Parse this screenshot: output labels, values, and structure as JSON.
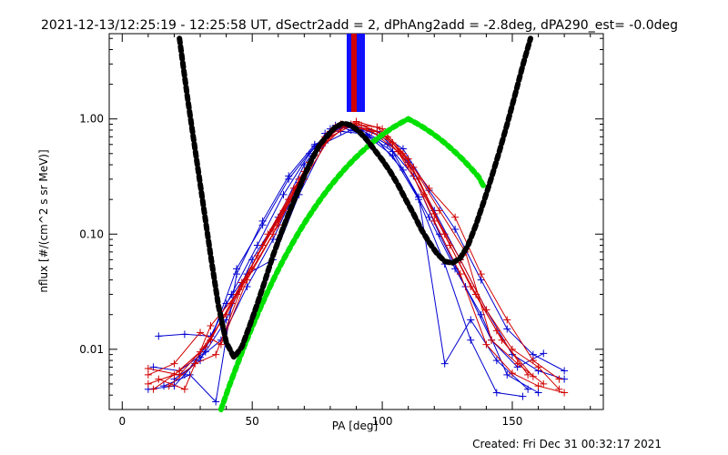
{
  "chart_data": {
    "type": "line",
    "title": "2021-12-13/12:25:19 - 12:25:58 UT, dSectr2add = 2, dPhAng2add = -2.8deg, dPA290_est= -0.0deg",
    "xlabel": "PA [deg]",
    "ylabel": "nflux [#/(cm^2 s sr MeV)]",
    "xlim": [
      -5,
      185
    ],
    "ylim": [
      0.003,
      5.5
    ],
    "yscale": "log",
    "xticks": [
      0,
      50,
      100,
      150
    ],
    "xtick_labels": [
      "0",
      "50",
      "100",
      "150"
    ],
    "yticks": [
      0.01,
      0.1,
      1.0
    ],
    "ytick_labels": [
      "0.01",
      "0.10",
      "1.00"
    ],
    "grid": false,
    "footer": "Created: Fri Dec 31 00:32:17 2021",
    "colors": {
      "red": "#d00000",
      "blue": "#0000d0",
      "green": "#00e000",
      "black": "#000000"
    },
    "series": [
      {
        "color": "blue",
        "x": [
          10,
          20,
          30,
          38,
          48,
          58,
          68,
          78,
          88,
          98,
          108,
          118,
          128,
          138,
          148,
          158,
          170
        ],
        "y": [
          0.0045,
          0.0048,
          0.0085,
          0.012,
          0.035,
          0.09,
          0.28,
          0.75,
          0.88,
          0.78,
          0.55,
          0.24,
          0.11,
          0.04,
          0.015,
          0.009,
          0.0065
        ]
      },
      {
        "color": "blue",
        "x": [
          12,
          22,
          32,
          40,
          50,
          60,
          70,
          80,
          90,
          100,
          110,
          120,
          130,
          140,
          150,
          160,
          170
        ],
        "y": [
          0.007,
          0.0065,
          0.0095,
          0.018,
          0.06,
          0.14,
          0.4,
          0.82,
          0.85,
          0.7,
          0.42,
          0.16,
          0.06,
          0.022,
          0.009,
          0.0065,
          0.0055
        ]
      },
      {
        "color": "blue",
        "x": [
          14,
          24,
          34,
          42,
          52,
          62,
          72,
          82,
          92,
          102,
          112,
          122,
          132,
          142,
          152,
          162
        ],
        "y": [
          0.013,
          0.0135,
          0.013,
          0.03,
          0.08,
          0.22,
          0.5,
          0.88,
          0.8,
          0.6,
          0.32,
          0.1,
          0.035,
          0.012,
          0.007,
          0.0092
        ]
      },
      {
        "color": "blue",
        "x": [
          16,
          26,
          36,
          44,
          54,
          64,
          74,
          84,
          94,
          104,
          114,
          124,
          134,
          144,
          156
        ],
        "y": [
          0.0048,
          0.006,
          0.0035,
          0.045,
          0.13,
          0.32,
          0.6,
          0.78,
          0.74,
          0.52,
          0.21,
          0.0075,
          0.018,
          0.008,
          0.0045
        ]
      },
      {
        "color": "blue",
        "x": [
          20,
          30,
          40,
          48,
          58,
          68,
          78,
          88,
          98,
          108,
          118,
          128,
          138,
          148,
          160
        ],
        "y": [
          0.0055,
          0.008,
          0.025,
          0.045,
          0.06,
          0.22,
          0.62,
          0.8,
          0.66,
          0.36,
          0.14,
          0.05,
          0.02,
          0.006,
          0.0042
        ]
      },
      {
        "color": "blue",
        "x": [
          24,
          34,
          44,
          54,
          64,
          74,
          84,
          94,
          104,
          114,
          124,
          134,
          144,
          154
        ],
        "y": [
          0.006,
          0.012,
          0.05,
          0.12,
          0.3,
          0.58,
          0.85,
          0.72,
          0.48,
          0.2,
          0.055,
          0.012,
          0.0042,
          0.0039
        ]
      },
      {
        "color": "red",
        "x": [
          10,
          20,
          30,
          38,
          48,
          58,
          68,
          78,
          88,
          98,
          108,
          118,
          128,
          138,
          148,
          158,
          168
        ],
        "y": [
          0.006,
          0.0075,
          0.014,
          0.011,
          0.04,
          0.1,
          0.3,
          0.7,
          0.9,
          0.85,
          0.5,
          0.25,
          0.14,
          0.045,
          0.018,
          0.008,
          0.0055
        ]
      },
      {
        "color": "red",
        "x": [
          10,
          20,
          30,
          40,
          50,
          60,
          70,
          80,
          90,
          100,
          110,
          120,
          130,
          140,
          150,
          160,
          168
        ],
        "y": [
          0.005,
          0.006,
          0.0095,
          0.02,
          0.05,
          0.12,
          0.35,
          0.78,
          0.95,
          0.82,
          0.45,
          0.15,
          0.06,
          0.022,
          0.01,
          0.007,
          0.0045
        ]
      },
      {
        "color": "red",
        "x": [
          12,
          22,
          32,
          42,
          52,
          62,
          72,
          82,
          92,
          102,
          112,
          122,
          132,
          142,
          152,
          162
        ],
        "y": [
          0.0045,
          0.0065,
          0.0105,
          0.025,
          0.065,
          0.16,
          0.42,
          0.85,
          0.88,
          0.7,
          0.38,
          0.16,
          0.07,
          0.012,
          0.0075,
          0.005
        ]
      },
      {
        "color": "red",
        "x": [
          14,
          24,
          34,
          44,
          54,
          64,
          74,
          84,
          94,
          104,
          114,
          124,
          134,
          144,
          156
        ],
        "y": [
          0.0055,
          0.0045,
          0.016,
          0.03,
          0.08,
          0.2,
          0.48,
          0.9,
          0.82,
          0.62,
          0.3,
          0.1,
          0.035,
          0.0145,
          0.006
        ]
      },
      {
        "color": "red",
        "x": [
          18,
          28,
          36,
          46,
          56,
          66,
          76,
          86,
          96,
          106,
          116,
          126,
          136,
          146,
          158
        ],
        "y": [
          0.0048,
          0.0075,
          0.009,
          0.035,
          0.1,
          0.25,
          0.55,
          0.88,
          0.78,
          0.52,
          0.22,
          0.08,
          0.03,
          0.012,
          0.0058
        ]
      },
      {
        "color": "red",
        "x": [
          10,
          22,
          34,
          46,
          58,
          70,
          80,
          90,
          100,
          110,
          120,
          130,
          140,
          150,
          160,
          170
        ],
        "y": [
          0.0068,
          0.006,
          0.012,
          0.038,
          0.11,
          0.3,
          0.7,
          0.92,
          0.75,
          0.4,
          0.13,
          0.045,
          0.011,
          0.0062,
          0.0048,
          0.0042
        ]
      },
      {
        "color": "green",
        "x": [
          38,
          41,
          44,
          47,
          50,
          53,
          56,
          59,
          62,
          65,
          68,
          71,
          74,
          77,
          80,
          83,
          86,
          89,
          92,
          95,
          98,
          101,
          104,
          107,
          110,
          113,
          116,
          119,
          122,
          125,
          128,
          131,
          134,
          137,
          139
        ],
        "y": [
          0.003,
          0.0047,
          0.0071,
          0.0107,
          0.0157,
          0.0226,
          0.0319,
          0.0442,
          0.06,
          0.0799,
          0.1045,
          0.1344,
          0.1701,
          0.2119,
          0.2602,
          0.315,
          0.3762,
          0.4433,
          0.5159,
          0.593,
          0.6736,
          0.7563,
          0.8395,
          0.9214,
          1.0,
          0.9214,
          0.8395,
          0.7563,
          0.6736,
          0.593,
          0.5159,
          0.4433,
          0.3762,
          0.315,
          0.2602
        ]
      },
      {
        "color": "black",
        "x": [
          22,
          25,
          28,
          31,
          34,
          37,
          40,
          43,
          46,
          49,
          52,
          55,
          58,
          61,
          64,
          67,
          70,
          73,
          76,
          79,
          82,
          85,
          88,
          91,
          94,
          97,
          100,
          103,
          106,
          109,
          112,
          115,
          118,
          121,
          124,
          127,
          130,
          133,
          136,
          139,
          142,
          145,
          148,
          151,
          154,
          157
        ],
        "y": [
          5.0,
          1.6,
          0.55,
          0.19,
          0.065,
          0.024,
          0.0115,
          0.0085,
          0.0105,
          0.016,
          0.025,
          0.04,
          0.065,
          0.1,
          0.15,
          0.22,
          0.32,
          0.45,
          0.6,
          0.72,
          0.85,
          0.92,
          0.88,
          0.78,
          0.66,
          0.54,
          0.44,
          0.35,
          0.27,
          0.2,
          0.15,
          0.11,
          0.085,
          0.068,
          0.058,
          0.056,
          0.062,
          0.08,
          0.12,
          0.19,
          0.31,
          0.52,
          0.9,
          1.6,
          2.9,
          5.0
        ]
      }
    ]
  }
}
